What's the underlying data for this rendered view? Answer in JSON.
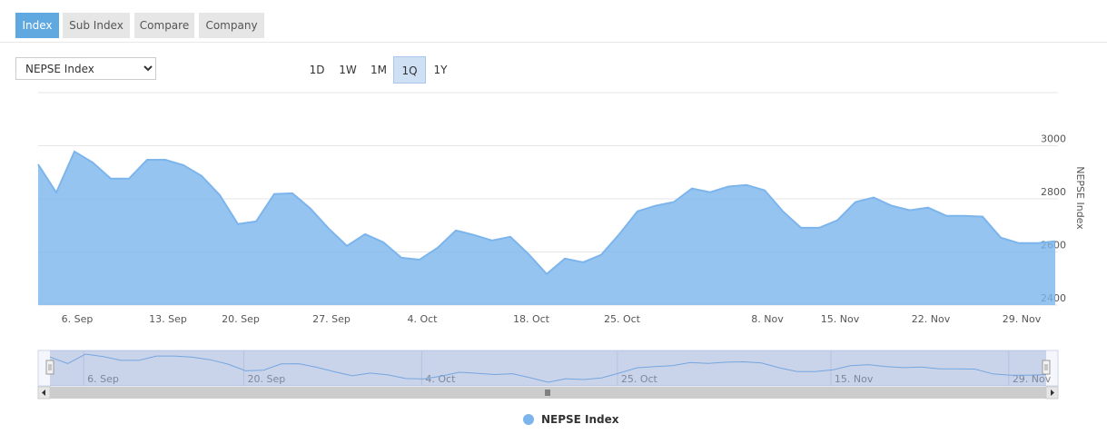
{
  "tabs": [
    "Index",
    "Sub Index",
    "Compare",
    "Company"
  ],
  "active_tab": 0,
  "index_select": "NEPSE Index",
  "range_buttons": [
    "1D",
    "1W",
    "1M",
    "1Q",
    "1Y"
  ],
  "active_range": 3,
  "chart_data": {
    "type": "area",
    "categories": [
      null,
      null,
      "6. Sep",
      null,
      null,
      null,
      null,
      "13. Sep",
      null,
      null,
      null,
      "20. Sep",
      null,
      null,
      null,
      null,
      "27. Sep",
      null,
      null,
      null,
      null,
      "4. Oct",
      null,
      null,
      null,
      null,
      null,
      "18. Oct",
      null,
      null,
      null,
      null,
      "25. Oct",
      null,
      null,
      null,
      null,
      null,
      null,
      null,
      "8. Nov",
      null,
      null,
      null,
      "15. Nov",
      null,
      null,
      null,
      null,
      "22. Nov",
      null,
      null,
      null,
      null,
      "29. Nov",
      null,
      null
    ],
    "series": [
      {
        "name": "NEPSE Index",
        "color": "#7cb5ec",
        "values": [
          2930,
          2824,
          2978,
          2937,
          2876,
          2876,
          2947,
          2947,
          2927,
          2886,
          2814,
          2705,
          2715,
          2818,
          2821,
          2763,
          2688,
          2623,
          2667,
          2637,
          2578,
          2571,
          2616,
          2681,
          2664,
          2643,
          2657,
          2592,
          2517,
          2575,
          2561,
          2589,
          2667,
          2753,
          2774,
          2788,
          2839,
          2825,
          2846,
          2852,
          2832,
          2753,
          2691,
          2691,
          2719,
          2788,
          2805,
          2774,
          2757,
          2767,
          2736,
          2736,
          2733,
          2654,
          2633,
          2633,
          2640
        ]
      }
    ],
    "ylim": [
      2400,
      3200
    ],
    "yticks": [
      2400,
      2600,
      2800,
      3000
    ],
    "y_axis_title": "NEPSE Index",
    "y_axis_side": "right",
    "grid": true,
    "legend": "bottom"
  }
}
